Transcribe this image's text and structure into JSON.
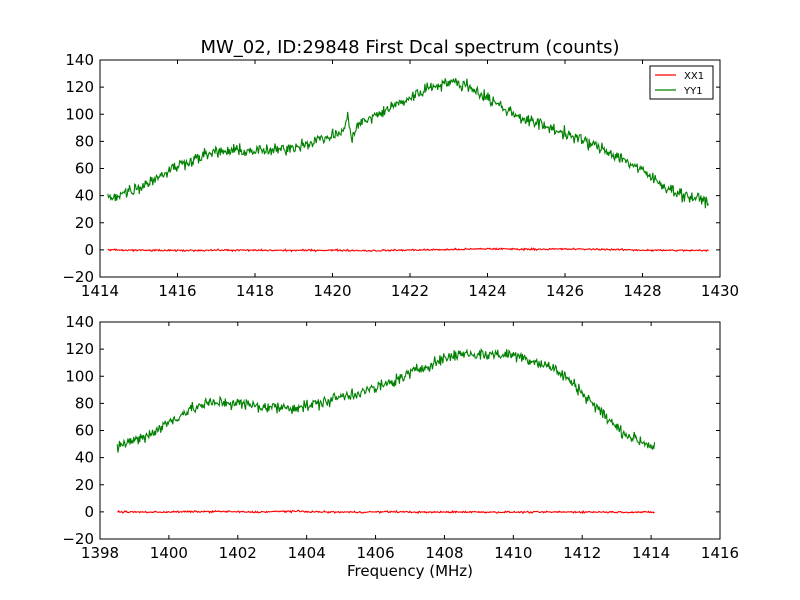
{
  "figure": {
    "title": "MW_02, ID:29848 First Dcal spectrum (counts)",
    "xlabel": "Frequency (MHz)"
  },
  "colors": {
    "XX1": "#ff0000",
    "YY1": "#008000",
    "axes": "#000000",
    "background": "#ffffff"
  },
  "chart_data": [
    {
      "type": "line",
      "title": "MW_02, ID:29848 First Dcal spectrum (counts)",
      "xlabel": "",
      "ylabel": "",
      "xlim": [
        1414,
        1430
      ],
      "ylim": [
        -20,
        140
      ],
      "xticks": [
        "1414",
        "1416",
        "1418",
        "1420",
        "1422",
        "1424",
        "1426",
        "1428",
        "1430"
      ],
      "yticks": [
        "−20",
        "0",
        "20",
        "40",
        "60",
        "80",
        "100",
        "120",
        "140"
      ],
      "legend": {
        "placement": "top-right",
        "entries": [
          "XX1",
          "YY1"
        ]
      },
      "grid": false,
      "series": [
        {
          "name": "XX1",
          "x": [
            1414.2,
            1415,
            1416,
            1417,
            1418,
            1419,
            1420,
            1421,
            1422,
            1423,
            1424,
            1425,
            1426,
            1427,
            1428,
            1429,
            1429.7
          ],
          "y": [
            0,
            -0.3,
            -0.5,
            -0.2,
            -0.3,
            -0.4,
            -0.2,
            -0.6,
            -0.1,
            0.2,
            0.8,
            0.5,
            0.6,
            0.4,
            -0.2,
            -0.4,
            -0.5
          ]
        },
        {
          "name": "YY1",
          "x": [
            1414.2,
            1414.5,
            1415,
            1415.5,
            1416,
            1416.5,
            1417,
            1417.5,
            1418,
            1418.5,
            1419,
            1419.5,
            1420,
            1420.3,
            1420.4,
            1420.5,
            1420.6,
            1421,
            1421.5,
            1422,
            1422.5,
            1423,
            1423.5,
            1424,
            1424.5,
            1425,
            1425.5,
            1426,
            1426.5,
            1427,
            1427.5,
            1428,
            1428.5,
            1429,
            1429.5,
            1429.7
          ],
          "y": [
            38,
            41,
            46,
            54,
            62,
            68,
            72,
            73,
            73,
            73,
            76,
            80,
            84,
            88,
            100,
            78,
            92,
            97,
            105,
            112,
            120,
            124,
            121,
            112,
            103,
            96,
            91,
            86,
            80,
            74,
            67,
            58,
            48,
            41,
            37,
            36
          ]
        }
      ]
    },
    {
      "type": "line",
      "title": "",
      "xlabel": "Frequency (MHz)",
      "ylabel": "",
      "xlim": [
        1398,
        1416
      ],
      "ylim": [
        -20,
        140
      ],
      "xticks": [
        "1398",
        "1400",
        "1402",
        "1404",
        "1406",
        "1408",
        "1410",
        "1412",
        "1414",
        "1416"
      ],
      "yticks": [
        "−20",
        "0",
        "20",
        "40",
        "60",
        "80",
        "100",
        "120",
        "140"
      ],
      "grid": false,
      "series": [
        {
          "name": "XX1",
          "x": [
            1398.5,
            1399.5,
            1400.5,
            1401.5,
            1402.5,
            1403.5,
            1404.5,
            1405.5,
            1406.5,
            1407.5,
            1408.5,
            1409.5,
            1410.5,
            1411.5,
            1412.5,
            1413.5,
            1414.1
          ],
          "y": [
            0,
            -0.2,
            0.1,
            0.3,
            -0.2,
            0.5,
            -0.1,
            -0.2,
            0.1,
            -0.3,
            0,
            -0.2,
            -0.2,
            -0.1,
            -0.1,
            -0.2,
            -0.3
          ]
        },
        {
          "name": "YY1",
          "x": [
            1398.5,
            1399,
            1399.5,
            1400,
            1400.5,
            1401,
            1401.5,
            1402,
            1402.5,
            1403,
            1403.5,
            1404,
            1404.5,
            1405,
            1405.5,
            1406,
            1406.5,
            1407,
            1407.5,
            1408,
            1408.5,
            1409,
            1409.5,
            1410,
            1410.5,
            1411,
            1411.5,
            1412,
            1412.5,
            1413,
            1413.5,
            1414.1
          ],
          "y": [
            48,
            53,
            58,
            66,
            74,
            79,
            81,
            80,
            78,
            77,
            77,
            78,
            81,
            85,
            88,
            91,
            96,
            102,
            108,
            113,
            117,
            116,
            116,
            116,
            112,
            108,
            100,
            88,
            75,
            62,
            54,
            48
          ]
        }
      ]
    }
  ]
}
